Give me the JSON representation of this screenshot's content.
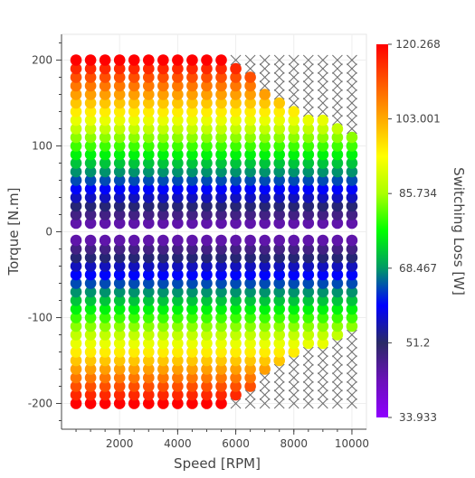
{
  "chart_data": {
    "type": "scatter",
    "title": "",
    "xlabel": "Speed [RPM]",
    "ylabel": "Torque [N.m]",
    "xlim": [
      0,
      10500
    ],
    "ylim": [
      -230,
      230
    ],
    "x_ticks": [
      2000,
      4000,
      6000,
      8000,
      10000
    ],
    "y_ticks": [
      -200,
      -100,
      0,
      100,
      200
    ],
    "grid": true,
    "speeds": [
      500,
      1000,
      1500,
      2000,
      2500,
      3000,
      3500,
      4000,
      4500,
      5000,
      5500,
      6000,
      6500,
      7000,
      7500,
      8000,
      8500,
      9000,
      9500,
      10000
    ],
    "torque_limit": [
      200,
      200,
      200,
      200,
      200,
      200,
      200,
      200,
      200,
      200,
      200,
      190,
      180,
      160,
      150,
      140,
      130,
      130,
      120,
      110
    ],
    "torque_step": 10,
    "torque_max": 200,
    "invalid_marker": "x",
    "invalid_marker_color": "#6e6e6e",
    "colorbar": {
      "label": "Switching Loss [W]",
      "min": 33.933,
      "max": 120.268,
      "tick_labels": [
        "120.268",
        "103.001",
        "85.734",
        "68.467",
        "51.2",
        "33.933"
      ],
      "palette": [
        "#8f00ff",
        "#6a11b8",
        "#2a2a66",
        "#0000ff",
        "#009966",
        "#00ff00",
        "#aaff00",
        "#ffff00",
        "#ffaa00",
        "#ff5500",
        "#ff0000"
      ]
    }
  }
}
